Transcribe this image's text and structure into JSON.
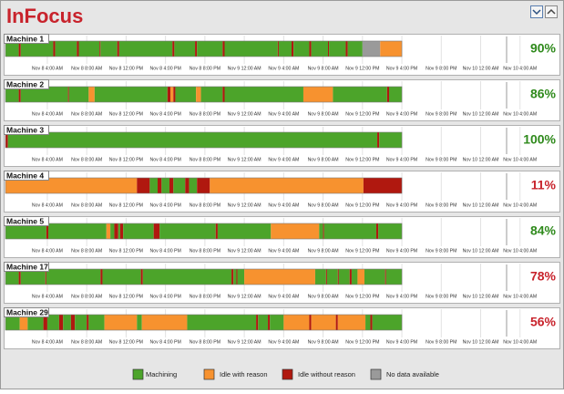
{
  "header": {
    "title": "InFocus"
  },
  "time_axis": {
    "xlim": [
      -0.25,
      56
    ],
    "ticks": [
      {
        "value": 4,
        "label": "Nov 8 4:00 AM"
      },
      {
        "value": 8,
        "label": "Nov 8 8:00 AM"
      },
      {
        "value": 12,
        "label": "Nov 8 12:00 PM"
      },
      {
        "value": 16,
        "label": "Nov 8 4:00 PM"
      },
      {
        "value": 20,
        "label": "Nov 8 8:00 PM"
      },
      {
        "value": 24,
        "label": "Nov 9 12:00 AM"
      },
      {
        "value": 28,
        "label": "Nov 9 4:00 AM"
      },
      {
        "value": 32,
        "label": "Nov 9 8:00 AM"
      },
      {
        "value": 36,
        "label": "Nov 9 12:00 PM"
      },
      {
        "value": 40,
        "label": "Nov 9 4:00 PM"
      },
      {
        "value": 44,
        "label": "Nov 9 8:00 PM"
      },
      {
        "value": 48,
        "label": "Nov 10 12:00 AM"
      },
      {
        "value": 52,
        "label": "Nov 10 4:00 AM"
      }
    ]
  },
  "legend": [
    {
      "label": "Machining",
      "color": "#4ca42a"
    },
    {
      "label": "Idle with reason",
      "color": "#f7922f"
    },
    {
      "label": "Idle without reason",
      "color": "#b0180f"
    },
    {
      "label": "No data available",
      "color": "#9a9a9a"
    }
  ],
  "machines": [
    {
      "name": "Machine 1",
      "percent": "90%",
      "percent_color": "#2f8a1c",
      "segments": [
        [
          0,
          -0.25,
          1.1
        ],
        [
          2,
          1.1,
          1.3
        ],
        [
          0,
          1.3,
          4.6
        ],
        [
          2,
          4.6,
          4.8
        ],
        [
          0,
          4.8,
          7
        ],
        [
          2,
          7,
          7.2
        ],
        [
          0,
          7.2,
          9.3
        ],
        [
          2,
          9.3,
          9.4
        ],
        [
          0,
          9.4,
          11.1
        ],
        [
          2,
          11.1,
          11.3
        ],
        [
          0,
          11.3,
          16.7
        ],
        [
          2,
          16.7,
          16.9
        ],
        [
          0,
          16.9,
          19
        ],
        [
          2,
          19,
          19.2
        ],
        [
          0,
          19.2,
          21.8
        ],
        [
          2,
          21.8,
          22
        ],
        [
          0,
          22,
          27.4
        ],
        [
          2,
          27.4,
          27.5
        ],
        [
          0,
          27.5,
          28.8
        ],
        [
          2,
          28.8,
          29
        ],
        [
          0,
          29,
          30.6
        ],
        [
          2,
          30.6,
          30.8
        ],
        [
          0,
          30.8,
          32.5
        ],
        [
          2,
          32.5,
          32.6
        ],
        [
          0,
          32.6,
          34.3
        ],
        [
          2,
          34.3,
          34.5
        ],
        [
          0,
          34.5,
          36
        ],
        [
          3,
          36,
          37.8
        ],
        [
          1,
          37.8,
          40
        ]
      ]
    },
    {
      "name": "Machine 2",
      "percent": "86%",
      "percent_color": "#2f8a1c",
      "segments": [
        [
          0,
          -0.25,
          1.1
        ],
        [
          2,
          1.1,
          1.3
        ],
        [
          0,
          1.3,
          6.1
        ],
        [
          2,
          6.1,
          6.2
        ],
        [
          0,
          6.2,
          8.2
        ],
        [
          1,
          8.2,
          8.8
        ],
        [
          0,
          8.8,
          16.2
        ],
        [
          2,
          16.2,
          16.5
        ],
        [
          1,
          16.5,
          16.8
        ],
        [
          2,
          16.8,
          17
        ],
        [
          0,
          17,
          19.1
        ],
        [
          1,
          19.1,
          19.6
        ],
        [
          0,
          19.6,
          21.8
        ],
        [
          2,
          21.8,
          22
        ],
        [
          0,
          22,
          30
        ],
        [
          1,
          30,
          33
        ],
        [
          0,
          33,
          38.5
        ],
        [
          2,
          38.5,
          38.7
        ],
        [
          0,
          38.7,
          40
        ]
      ]
    },
    {
      "name": "Machine 3",
      "percent": "100%",
      "percent_color": "#2f8a1c",
      "segments": [
        [
          2,
          -0.25,
          0
        ],
        [
          0,
          0,
          37.5
        ],
        [
          2,
          37.5,
          37.7
        ],
        [
          0,
          37.7,
          40
        ]
      ]
    },
    {
      "name": "Machine 4",
      "percent": "11%",
      "percent_color": "#c8232c",
      "segments": [
        [
          1,
          -0.25,
          13.1
        ],
        [
          2,
          13.1,
          14.4
        ],
        [
          0,
          14.4,
          15.2
        ],
        [
          2,
          15.2,
          15.6
        ],
        [
          0,
          15.6,
          16.4
        ],
        [
          2,
          16.4,
          16.8
        ],
        [
          0,
          16.8,
          18
        ],
        [
          2,
          18,
          18.4
        ],
        [
          0,
          18.4,
          19.2
        ],
        [
          2,
          19.2,
          20.5
        ],
        [
          1,
          20.5,
          36.1
        ],
        [
          2,
          36.1,
          40
        ]
      ]
    },
    {
      "name": "Machine 5",
      "percent": "84%",
      "percent_color": "#2f8a1c",
      "segments": [
        [
          0,
          -0.25,
          3.9
        ],
        [
          2,
          3.9,
          4.1
        ],
        [
          0,
          4.1,
          10
        ],
        [
          1,
          10,
          10.4
        ],
        [
          0,
          10.4,
          10.8
        ],
        [
          2,
          10.8,
          11.2
        ],
        [
          0,
          11.2,
          11.4
        ],
        [
          2,
          11.4,
          11.7
        ],
        [
          0,
          11.7,
          14.8
        ],
        [
          2,
          14.8,
          15.4
        ],
        [
          0,
          15.4,
          21.1
        ],
        [
          2,
          21.1,
          21.3
        ],
        [
          0,
          21.3,
          26.7
        ],
        [
          1,
          26.7,
          31.6
        ],
        [
          0,
          31.6,
          32
        ],
        [
          2,
          32,
          32.1
        ],
        [
          0,
          32.1,
          37.4
        ],
        [
          2,
          37.4,
          37.6
        ],
        [
          0,
          37.6,
          40
        ]
      ]
    },
    {
      "name": "Machine 17",
      "percent": "78%",
      "percent_color": "#c8232c",
      "segments": [
        [
          0,
          -0.25,
          1.1
        ],
        [
          2,
          1.1,
          1.3
        ],
        [
          0,
          1.3,
          3.8
        ],
        [
          2,
          3.8,
          3.9
        ],
        [
          0,
          3.9,
          9.4
        ],
        [
          2,
          9.4,
          9.6
        ],
        [
          0,
          9.6,
          13.5
        ],
        [
          2,
          13.5,
          13.7
        ],
        [
          0,
          13.7,
          22.7
        ],
        [
          2,
          22.7,
          22.9
        ],
        [
          0,
          22.9,
          23.2
        ],
        [
          2,
          23.2,
          23.3
        ],
        [
          0,
          23.3,
          24
        ],
        [
          1,
          24,
          31.2
        ],
        [
          0,
          31.2,
          32.3
        ],
        [
          2,
          32.3,
          32.4
        ],
        [
          0,
          32.4,
          33.5
        ],
        [
          2,
          33.5,
          33.6
        ],
        [
          0,
          33.6,
          34.7
        ],
        [
          2,
          34.7,
          34.9
        ],
        [
          0,
          34.9,
          35.5
        ],
        [
          1,
          35.5,
          36.2
        ],
        [
          0,
          36.2,
          38.3
        ],
        [
          2,
          38.3,
          38.4
        ],
        [
          0,
          38.4,
          40
        ]
      ]
    },
    {
      "name": "Machine 29",
      "percent": "56%",
      "percent_color": "#c8232c",
      "segments": [
        [
          0,
          -0.25,
          1.2
        ],
        [
          1,
          1.2,
          2
        ],
        [
          0,
          2,
          3.6
        ],
        [
          2,
          3.6,
          4
        ],
        [
          0,
          4,
          5.2
        ],
        [
          2,
          5.2,
          5.6
        ],
        [
          0,
          5.6,
          6.4
        ],
        [
          2,
          6.4,
          6.8
        ],
        [
          0,
          6.8,
          8
        ],
        [
          2,
          8,
          8.2
        ],
        [
          0,
          8.2,
          9.8
        ],
        [
          1,
          9.8,
          13.1
        ],
        [
          0,
          13.1,
          13.6
        ],
        [
          1,
          13.6,
          18.2
        ],
        [
          0,
          18.2,
          25.2
        ],
        [
          2,
          25.2,
          25.4
        ],
        [
          0,
          25.4,
          26.4
        ],
        [
          2,
          26.4,
          26.6
        ],
        [
          0,
          26.6,
          28
        ],
        [
          1,
          28,
          30.6
        ],
        [
          2,
          30.6,
          30.8
        ],
        [
          1,
          30.8,
          33.3
        ],
        [
          2,
          33.3,
          33.5
        ],
        [
          1,
          33.5,
          36.3
        ],
        [
          0,
          36.3,
          36.8
        ],
        [
          2,
          36.8,
          37
        ],
        [
          0,
          37,
          40
        ]
      ]
    }
  ]
}
